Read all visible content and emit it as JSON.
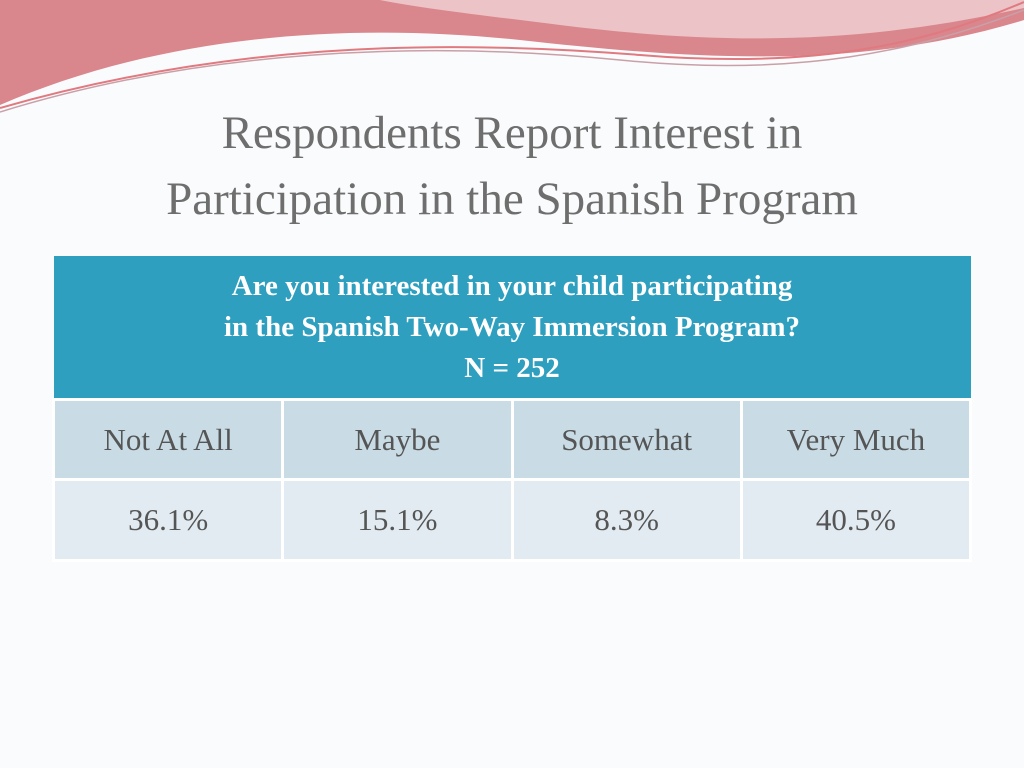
{
  "title": [
    "Respondents Report Interest in",
    "Participation in the Spanish Program"
  ],
  "table": {
    "header": [
      "Are you interested in your child participating",
      "in the Spanish Two-Way Immersion Program?",
      "N = 252"
    ],
    "columns": [
      "Not At All",
      "Maybe",
      "Somewhat",
      "Very Much"
    ],
    "rows": [
      [
        "36.1%",
        "15.1%",
        "8.3%",
        "40.5%"
      ]
    ]
  }
}
